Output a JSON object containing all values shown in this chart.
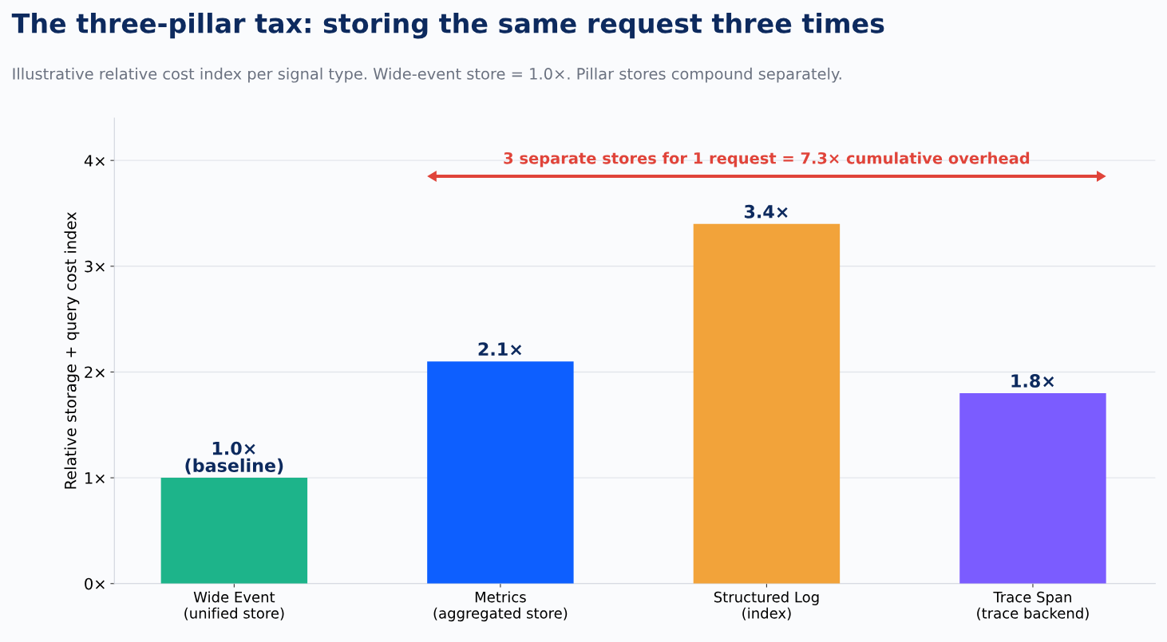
{
  "chart_data": {
    "type": "bar",
    "title": "The three-pillar tax: storing the same request three times",
    "subtitle": "Illustrative relative cost index per signal type. Wide-event store = 1.0×. Pillar stores compound separately.",
    "ylabel": "Relative storage + query cost index",
    "categories": [
      "Wide Event\n(unified store)",
      "Metrics\n(aggregated store)",
      "Structured Log\n(index)",
      "Trace Span\n(trace backend)"
    ],
    "values": [
      1.0,
      2.1,
      3.4,
      1.8
    ],
    "colors": [
      "#1db48a",
      "#0d5fff",
      "#f2a33a",
      "#7b5cff"
    ],
    "value_labels": [
      "1.0×\n(baseline)",
      "2.1×",
      "3.4×",
      "1.8×"
    ],
    "ylim": [
      0,
      4.4
    ],
    "yticks": [
      {
        "value": 0,
        "label": "0×"
      },
      {
        "value": 1,
        "label": "1×"
      },
      {
        "value": 2,
        "label": "2×"
      },
      {
        "value": 3,
        "label": "3×"
      },
      {
        "value": 4,
        "label": "4×"
      }
    ],
    "grid": "y",
    "annotations": [
      "3 separate stores for 1 request = 7.3× cumulative overhead"
    ]
  }
}
